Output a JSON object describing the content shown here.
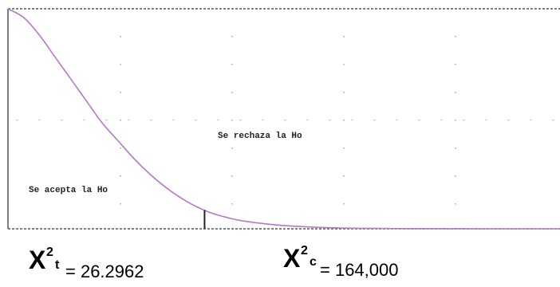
{
  "chart_data": {
    "type": "line",
    "title": "",
    "xlabel": "",
    "ylabel": "",
    "curve": "chi-square density, right tail decaying to zero",
    "x": [
      0,
      20,
      40,
      60,
      80,
      100,
      120,
      140,
      160,
      180,
      200,
      220,
      240,
      260,
      280,
      300,
      340,
      380,
      420,
      460,
      520,
      580,
      640,
      702
    ],
    "y": [
      1.0,
      0.96,
      0.88,
      0.78,
      0.68,
      0.58,
      0.48,
      0.4,
      0.32,
      0.25,
      0.19,
      0.14,
      0.1,
      0.07,
      0.05,
      0.035,
      0.018,
      0.009,
      0.004,
      0.002,
      0.0005,
      0.0001,
      0.0,
      0.0
    ],
    "critical_line_x": 250,
    "series_color": "#b777c8",
    "grid": "dotted",
    "regions": {
      "accept": "Se acepta la Ho",
      "reject": "Se rechaza la Ho"
    }
  },
  "stats": {
    "table": {
      "symbol": "X",
      "sup": "2",
      "sub": "t",
      "value": "= 26.2962"
    },
    "computed": {
      "symbol": "X",
      "sup": "2",
      "sub": "c",
      "value": "= 164,000"
    }
  }
}
